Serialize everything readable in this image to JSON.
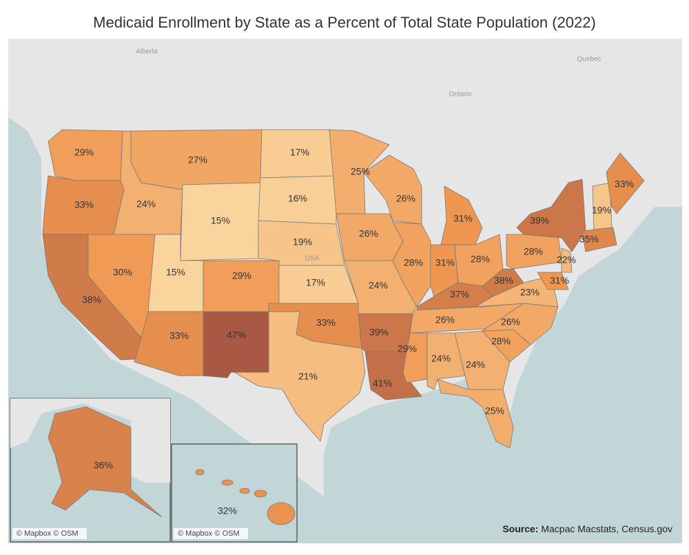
{
  "chart_data": {
    "type": "choropleth",
    "title": "Medicaid Enrollment by State as a Percent of Total State Population (2022)",
    "values": [
      29,
      33,
      38,
      30,
      24,
      27,
      15,
      15,
      33,
      29,
      47,
      17,
      16,
      19,
      17,
      33,
      21,
      25,
      26,
      24,
      39,
      41,
      26,
      28,
      31,
      31,
      28,
      37,
      26,
      29,
      24,
      24,
      25,
      28,
      26,
      23,
      38,
      28,
      39,
      19,
      33,
      35,
      22,
      31,
      36,
      32
    ],
    "value_labels": [
      "29%",
      "33%",
      "38%",
      "30%",
      "24%",
      "27%",
      "15%",
      "15%",
      "33%",
      "29%",
      "47%",
      "17%",
      "16%",
      "19%",
      "17%",
      "33%",
      "21%",
      "25%",
      "26%",
      "24%",
      "39%",
      "41%",
      "26%",
      "28%",
      "31%",
      "31%",
      "28%",
      "37%",
      "26%",
      "29%",
      "24%",
      "24%",
      "25%",
      "28%",
      "26%",
      "23%",
      "38%",
      "28%",
      "39%",
      "19%",
      "33%",
      "35%",
      "22%",
      "31%",
      "36%",
      "32%"
    ],
    "color_scale": [
      "#f9d49c",
      "#ef9650",
      "#a85843"
    ],
    "place_labels": [
      "Alberta",
      "Ontario",
      "Quebec",
      "USA"
    ],
    "attribution": "© Mapbox © OSM",
    "source_label": "Source:",
    "source": "Macpac Macstats, Census.gov"
  }
}
